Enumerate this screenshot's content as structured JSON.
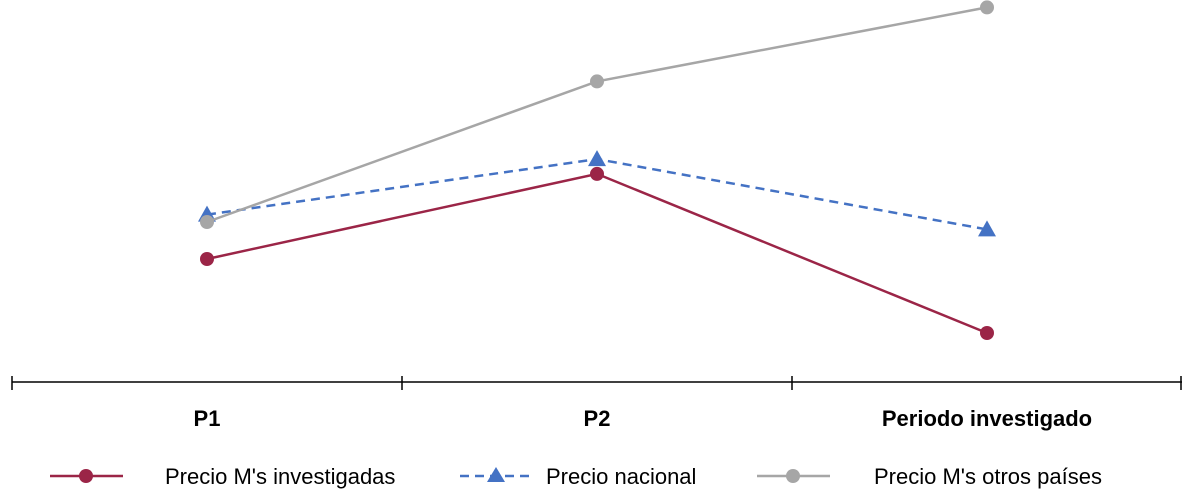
{
  "chart_data": {
    "type": "line",
    "title": "",
    "xlabel": "",
    "ylabel": "",
    "categories": [
      "P1",
      "P2",
      "Periodo investigado"
    ],
    "ylim": [
      0,
      100
    ],
    "y_axis_visible": false,
    "grid": false,
    "legend_position": "bottom",
    "series": [
      {
        "name": "Precio M's investigadas",
        "values": [
          30,
          53,
          10
        ],
        "color": "#9b2547",
        "line_style": "solid",
        "marker": "circle"
      },
      {
        "name": "Precio nacional",
        "values": [
          42,
          57,
          38
        ],
        "color": "#4472c4",
        "line_style": "dashed",
        "marker": "triangle"
      },
      {
        "name": "Precio M's otros países",
        "values": [
          40,
          78,
          98
        ],
        "color": "#a6a6a6",
        "line_style": "solid",
        "marker": "circle"
      }
    ]
  }
}
